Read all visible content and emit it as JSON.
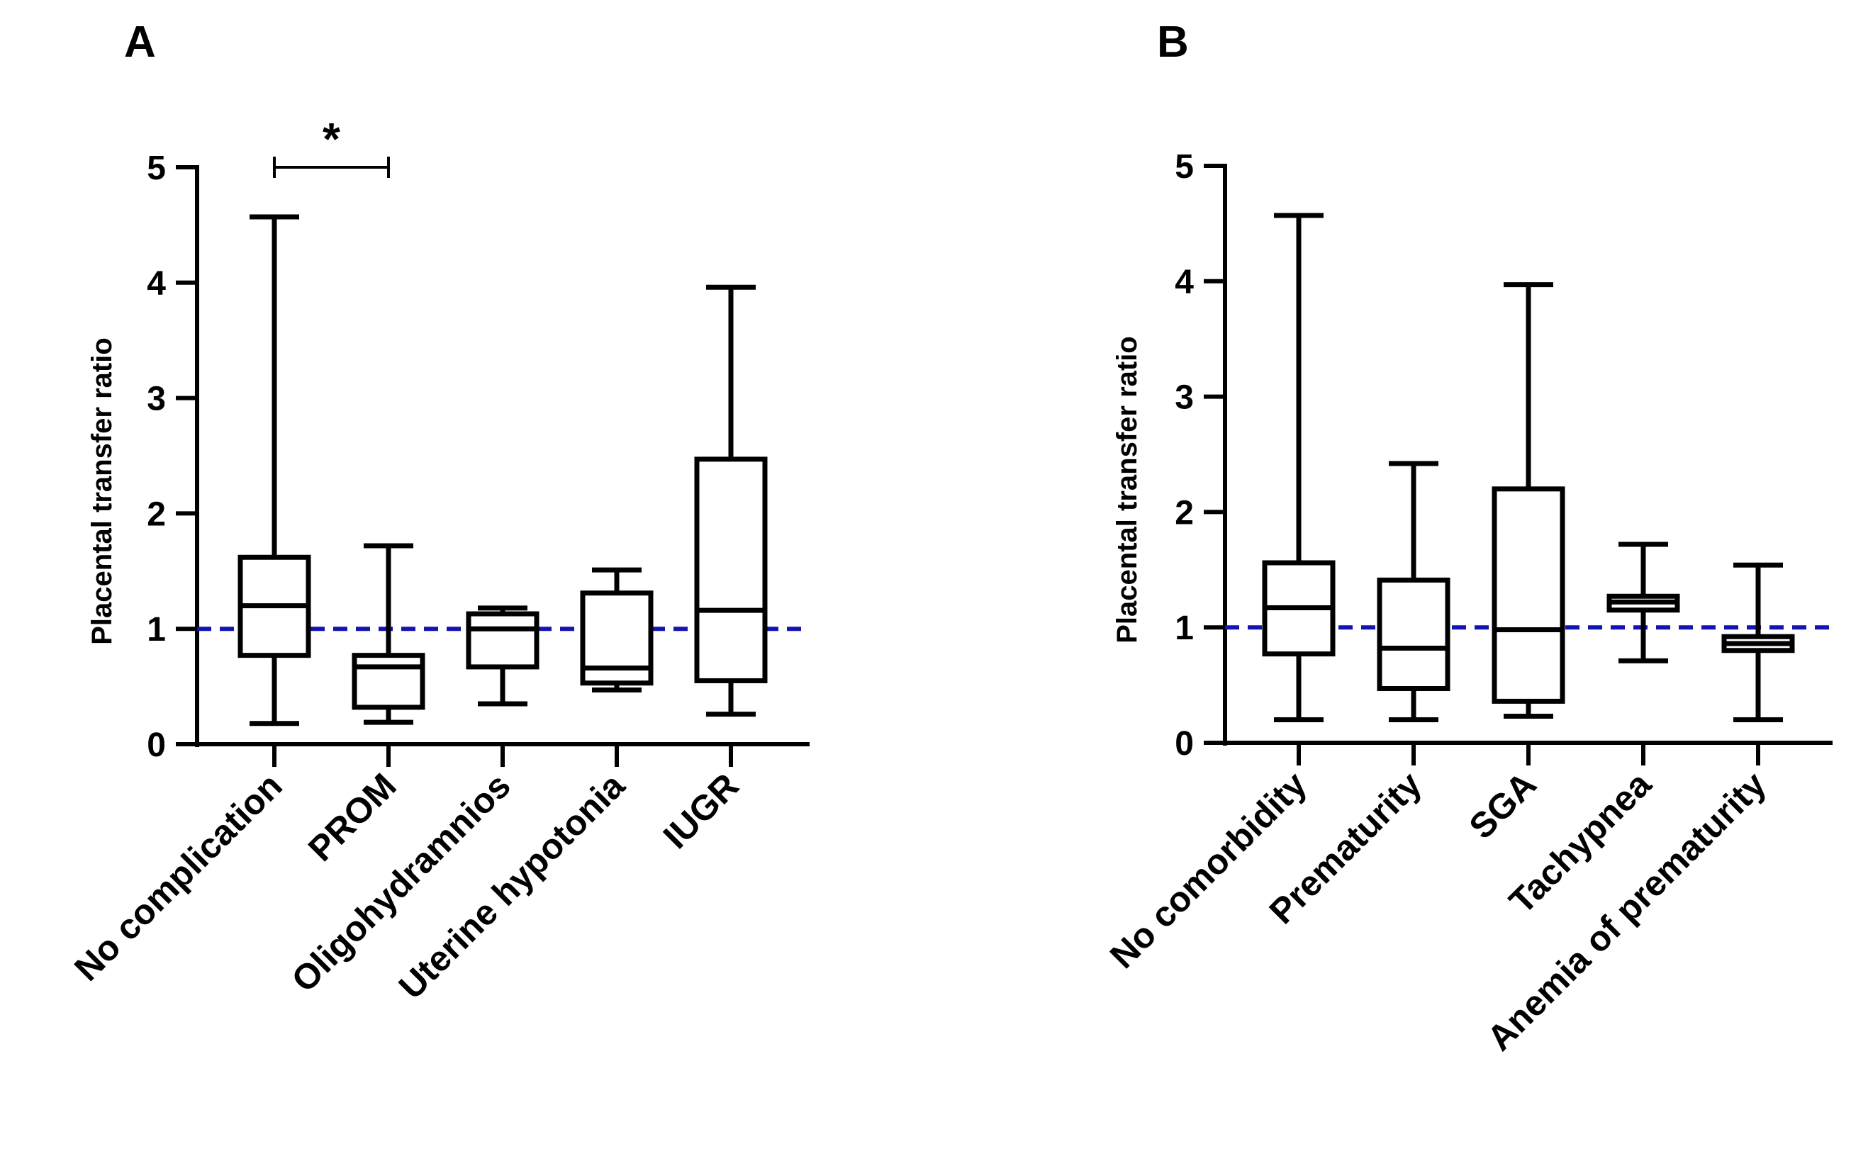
{
  "chart_data": [
    {
      "type": "box",
      "panel_label": "A",
      "ylabel": "Placental transfer ratio",
      "ylim": [
        0,
        5
      ],
      "yticks": [
        "0",
        "1",
        "2",
        "3",
        "4",
        "5"
      ],
      "reference_line": {
        "y": 1,
        "style": "dashed",
        "color": "#1414b4"
      },
      "categories": [
        "No complication",
        "PROM",
        "Oligohydramnios",
        "Uterine hypotonia",
        "IUGR"
      ],
      "boxes": [
        {
          "min": 0.18,
          "q1": 0.77,
          "median": 1.2,
          "q3": 1.62,
          "max": 4.57
        },
        {
          "min": 0.19,
          "q1": 0.32,
          "median": 0.67,
          "q3": 0.77,
          "max": 1.72
        },
        {
          "min": 0.35,
          "q1": 0.67,
          "median": 1.0,
          "q3": 1.13,
          "max": 1.18
        },
        {
          "min": 0.47,
          "q1": 0.53,
          "median": 0.66,
          "q3": 1.31,
          "max": 1.51
        },
        {
          "min": 0.26,
          "q1": 0.55,
          "median": 1.16,
          "q3": 2.47,
          "max": 3.96
        }
      ],
      "significance": [
        {
          "from": 0,
          "to": 1,
          "label": "*",
          "y": 5.0
        }
      ]
    },
    {
      "type": "box",
      "panel_label": "B",
      "ylabel": "Placental transfer ratio",
      "ylim": [
        0,
        5
      ],
      "yticks": [
        "0",
        "1",
        "2",
        "3",
        "4",
        "5"
      ],
      "reference_line": {
        "y": 1,
        "style": "dashed",
        "color": "#1414b4"
      },
      "categories": [
        "No comorbidity",
        "Prematurity",
        "SGA",
        "Tachypnea",
        "Anemia of prematurity"
      ],
      "boxes": [
        {
          "min": 0.2,
          "q1": 0.77,
          "median": 1.17,
          "q3": 1.56,
          "max": 4.57
        },
        {
          "min": 0.2,
          "q1": 0.47,
          "median": 0.82,
          "q3": 1.41,
          "max": 2.42
        },
        {
          "min": 0.23,
          "q1": 0.36,
          "median": 0.98,
          "q3": 2.2,
          "max": 3.97
        },
        {
          "min": 0.71,
          "q1": 1.15,
          "median": 1.22,
          "q3": 1.27,
          "max": 1.72
        },
        {
          "min": 0.2,
          "q1": 0.8,
          "median": 0.86,
          "q3": 0.92,
          "max": 1.54
        }
      ],
      "significance": []
    }
  ]
}
